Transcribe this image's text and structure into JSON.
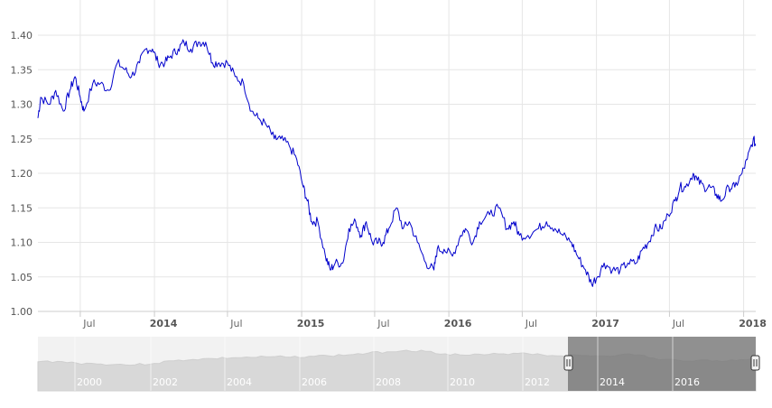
{
  "chart_data": {
    "type": "line",
    "title": "",
    "xlabel": "",
    "ylabel": "",
    "ylim": [
      1.0,
      1.4
    ],
    "yticks": [
      "1.00",
      "1.05",
      "1.10",
      "1.15",
      "1.20",
      "1.25",
      "1.30",
      "1.35",
      "1.40"
    ],
    "xlim": [
      "2013-03-18",
      "2018-01-31"
    ],
    "xticks": [
      {
        "label": "Jul",
        "date": "2013-07-01",
        "bold": false
      },
      {
        "label": "2014",
        "date": "2014-01-01",
        "bold": true
      },
      {
        "label": "Jul",
        "date": "2014-07-01",
        "bold": false
      },
      {
        "label": "2015",
        "date": "2015-01-01",
        "bold": true
      },
      {
        "label": "Jul",
        "date": "2015-07-01",
        "bold": false
      },
      {
        "label": "2016",
        "date": "2016-01-01",
        "bold": true
      },
      {
        "label": "Jul",
        "date": "2016-07-01",
        "bold": false
      },
      {
        "label": "2017",
        "date": "2017-01-01",
        "bold": true
      },
      {
        "label": "Jul",
        "date": "2017-07-01",
        "bold": false
      },
      {
        "label": "2018",
        "date": "2018-01-01",
        "bold": true
      }
    ],
    "grid": true,
    "line_color": "#0000cc",
    "series": [
      {
        "x": [
          "2013-03-18",
          "2013-03-25",
          "2013-04-15",
          "2013-05-01",
          "2013-05-20",
          "2013-06-05",
          "2013-06-18",
          "2013-07-01",
          "2013-07-10",
          "2013-08-01",
          "2013-08-20",
          "2013-09-10",
          "2013-10-01",
          "2013-10-20",
          "2013-11-05",
          "2013-11-25",
          "2013-12-10",
          "2013-12-27",
          "2014-01-10",
          "2014-01-27",
          "2014-02-10",
          "2014-03-01",
          "2014-03-15",
          "2014-04-01",
          "2014-04-20",
          "2014-05-08",
          "2014-05-25",
          "2014-06-10",
          "2014-07-01",
          "2014-07-20",
          "2014-08-10",
          "2014-08-30",
          "2014-09-15",
          "2014-10-05",
          "2014-10-25",
          "2014-11-10",
          "2014-12-01",
          "2014-12-20",
          "2015-01-05",
          "2015-01-15",
          "2015-01-26",
          "2015-02-10",
          "2015-03-01",
          "2015-03-13",
          "2015-03-25",
          "2015-04-13",
          "2015-04-28",
          "2015-05-15",
          "2015-05-28",
          "2015-06-10",
          "2015-06-25",
          "2015-07-10",
          "2015-07-22",
          "2015-08-05",
          "2015-08-24",
          "2015-09-10",
          "2015-09-25",
          "2015-10-15",
          "2015-11-05",
          "2015-11-25",
          "2015-12-03",
          "2015-12-20",
          "2016-01-10",
          "2016-01-30",
          "2016-02-11",
          "2016-03-01",
          "2016-03-17",
          "2016-04-11",
          "2016-05-03",
          "2016-05-25",
          "2016-06-10",
          "2016-06-24",
          "2016-07-15",
          "2016-08-10",
          "2016-08-30",
          "2016-09-20",
          "2016-10-10",
          "2016-10-31",
          "2016-11-15",
          "2016-12-05",
          "2016-12-20",
          "2017-01-03",
          "2017-01-20",
          "2017-02-10",
          "2017-03-01",
          "2017-03-20",
          "2017-04-10",
          "2017-04-25",
          "2017-05-10",
          "2017-05-25",
          "2017-06-10",
          "2017-06-28",
          "2017-07-15",
          "2017-07-27",
          "2017-08-10",
          "2017-08-29",
          "2017-09-08",
          "2017-09-25",
          "2017-10-10",
          "2017-10-25",
          "2017-11-07",
          "2017-11-25",
          "2017-12-10",
          "2017-12-28",
          "2018-01-10",
          "2018-01-25",
          "2018-01-31"
        ],
        "y": [
          1.28,
          1.31,
          1.3,
          1.32,
          1.29,
          1.32,
          1.34,
          1.31,
          1.29,
          1.33,
          1.33,
          1.32,
          1.36,
          1.35,
          1.34,
          1.36,
          1.38,
          1.38,
          1.36,
          1.36,
          1.37,
          1.38,
          1.39,
          1.38,
          1.39,
          1.39,
          1.36,
          1.36,
          1.36,
          1.34,
          1.33,
          1.29,
          1.28,
          1.27,
          1.25,
          1.25,
          1.24,
          1.22,
          1.18,
          1.16,
          1.13,
          1.13,
          1.08,
          1.06,
          1.07,
          1.07,
          1.12,
          1.13,
          1.11,
          1.13,
          1.1,
          1.1,
          1.1,
          1.12,
          1.15,
          1.12,
          1.13,
          1.1,
          1.07,
          1.06,
          1.09,
          1.09,
          1.08,
          1.11,
          1.12,
          1.1,
          1.13,
          1.14,
          1.15,
          1.12,
          1.13,
          1.11,
          1.11,
          1.12,
          1.13,
          1.12,
          1.11,
          1.1,
          1.08,
          1.06,
          1.04,
          1.05,
          1.07,
          1.06,
          1.06,
          1.07,
          1.07,
          1.09,
          1.1,
          1.12,
          1.12,
          1.14,
          1.16,
          1.18,
          1.18,
          1.2,
          1.19,
          1.18,
          1.18,
          1.17,
          1.16,
          1.18,
          1.18,
          1.2,
          1.22,
          1.25,
          1.24
        ]
      }
    ],
    "navigator": {
      "labels": [
        "2000",
        "2002",
        "2004",
        "2006",
        "2008",
        "2010",
        "2012",
        "2014",
        "2016"
      ],
      "series": [
        1.0,
        1.02,
        0.94,
        0.9,
        0.87,
        0.85,
        0.92,
        1.05,
        1.12,
        1.16,
        1.2,
        1.22,
        1.25,
        1.23,
        1.28,
        1.3,
        1.35,
        1.43,
        1.5,
        1.58,
        1.52,
        1.4,
        1.33,
        1.35,
        1.4,
        1.45,
        1.35,
        1.3,
        1.32,
        1.3,
        1.35,
        1.35,
        1.1,
        1.08,
        1.07,
        1.06,
        1.06,
        1.17
      ]
    }
  }
}
